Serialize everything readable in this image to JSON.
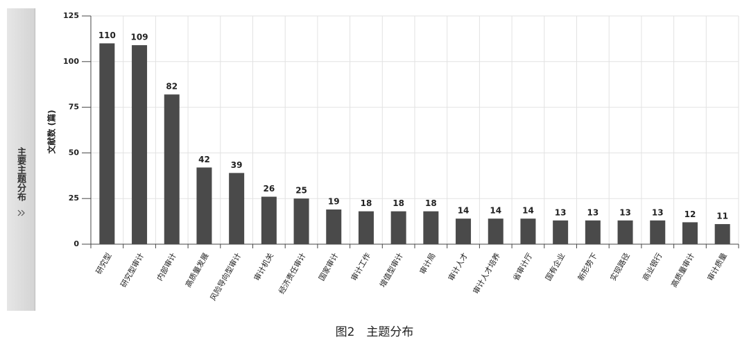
{
  "sidebar": {
    "label": "主要主题分布"
  },
  "chart_data": {
    "type": "bar",
    "caption": "图2　主题分布",
    "y_label": "文献数 (篇)",
    "categories": [
      "研究型",
      "研究型审计",
      "内部审计",
      "高质量发展",
      "风险导向型审计",
      "审计机关",
      "经济责任审计",
      "国家审计",
      "审计工作",
      "增值型审计",
      "审计局",
      "审计人才",
      "审计人才培养",
      "省审计厅",
      "国有企业",
      "新形势下",
      "实现路径",
      "商业银行",
      "高质量审计",
      "审计质量"
    ],
    "values": [
      110,
      109,
      82,
      42,
      39,
      26,
      25,
      19,
      18,
      18,
      18,
      14,
      14,
      14,
      13,
      13,
      13,
      13,
      12,
      11
    ],
    "color": "#4a4a4a",
    "ylim": [
      0,
      125
    ],
    "yticks": [
      0,
      25,
      50,
      75,
      100,
      125
    ],
    "grid": true
  }
}
